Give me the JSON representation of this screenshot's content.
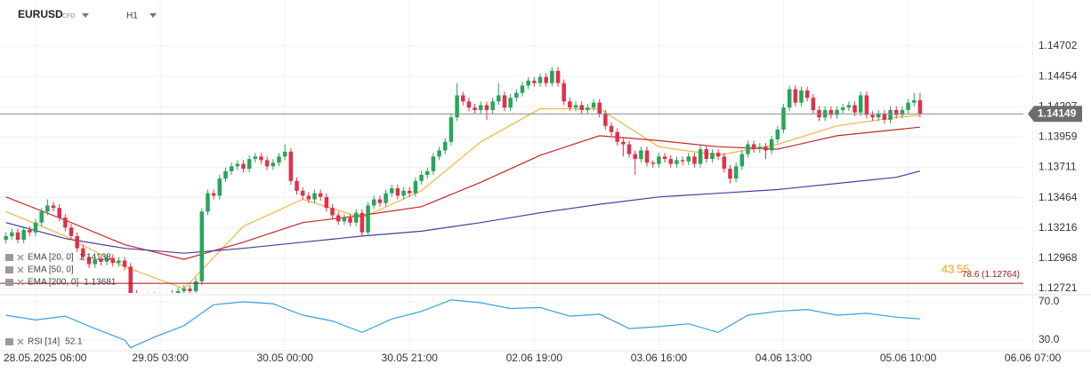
{
  "chart_data": {
    "type": "candlestick",
    "symbol": "EURUSD",
    "instrument_type": "CFD",
    "timeframe": "H1",
    "up_color": "#26a65b",
    "down_color": "#e0314b",
    "xlim": [
      -1,
      182.8
    ],
    "xticks": [
      {
        "value": 5,
        "label": "28.05.2025 06:00"
      },
      {
        "value": 26,
        "label": "29.05 03:00"
      },
      {
        "value": 47,
        "label": "30.05 00:00"
      },
      {
        "value": 68,
        "label": "30.05 21:00"
      },
      {
        "value": 89,
        "label": "02.06 19:00"
      },
      {
        "value": 110,
        "label": "03.06 16:00"
      },
      {
        "value": 131,
        "label": "04.06 13:00"
      },
      {
        "value": 152,
        "label": "05.06 10:00"
      },
      {
        "value": 173,
        "label": "06.06 07:00"
      }
    ],
    "ylim": [
      1.12685,
      1.15079
    ],
    "yticks": [
      1.14702,
      1.14454,
      1.14207,
      1.13959,
      1.13711,
      1.13464,
      1.13216,
      1.12968,
      1.12721
    ],
    "grid": true,
    "open": [
      1.1312,
      1.1315,
      1.1318,
      1.1312,
      1.132,
      1.1318,
      1.1326,
      1.1335,
      1.134,
      1.1338,
      1.133,
      1.1322,
      1.1315,
      1.1305,
      1.1298,
      1.1292,
      1.1296,
      1.1294,
      1.1297,
      1.1293,
      1.1295,
      1.129,
      1.1268,
      1.1264,
      1.1262,
      1.1266,
      1.126,
      1.1263,
      1.1265,
      1.1268,
      1.127,
      1.1272,
      1.127,
      1.1278,
      1.1335,
      1.135,
      1.1348,
      1.1362,
      1.1368,
      1.1372,
      1.1374,
      1.137,
      1.1378,
      1.138,
      1.1377,
      1.1372,
      1.1375,
      1.138,
      1.1384,
      1.136,
      1.1352,
      1.1348,
      1.1345,
      1.135,
      1.1347,
      1.1338,
      1.1332,
      1.1327,
      1.133,
      1.1326,
      1.1334,
      1.1318,
      1.134,
      1.1345,
      1.1342,
      1.135,
      1.1354,
      1.1348,
      1.1352,
      1.135,
      1.136,
      1.1365,
      1.1368,
      1.138,
      1.1385,
      1.1392,
      1.1412,
      1.143,
      1.1425,
      1.142,
      1.1418,
      1.1422,
      1.1418,
      1.1425,
      1.143,
      1.142,
      1.1428,
      1.1432,
      1.1438,
      1.1442,
      1.144,
      1.1445,
      1.144,
      1.145,
      1.144,
      1.1425,
      1.142,
      1.1422,
      1.1418,
      1.142,
      1.1424,
      1.1415,
      1.1405,
      1.14,
      1.1392,
      1.139,
      1.1382,
      1.1378,
      1.1385,
      1.1375,
      1.1374,
      1.138,
      1.1378,
      1.1374,
      1.1377,
      1.1376,
      1.138,
      1.1374,
      1.1386,
      1.1378,
      1.1383,
      1.138,
      1.137,
      1.1362,
      1.1372,
      1.1382,
      1.139,
      1.1386,
      1.1388,
      1.1385,
      1.1394,
      1.1402,
      1.142,
      1.1435,
      1.1424,
      1.1434,
      1.1428,
      1.1418,
      1.1412,
      1.1418,
      1.1414,
      1.1418,
      1.142,
      1.1422,
      1.1416,
      1.143,
      1.1414,
      1.1412,
      1.1415,
      1.141,
      1.1418,
      1.1414,
      1.1418,
      1.1424,
      1.1426
    ],
    "high": [
      1.1318,
      1.1321,
      1.1321,
      1.1323,
      1.1323,
      1.1329,
      1.1338,
      1.1345,
      1.1343,
      1.1341,
      1.1333,
      1.1325,
      1.1318,
      1.1308,
      1.1301,
      1.1299,
      1.1299,
      1.13,
      1.13,
      1.1298,
      1.1298,
      1.1293,
      1.1271,
      1.1267,
      1.1269,
      1.1269,
      1.1266,
      1.1268,
      1.1271,
      1.1273,
      1.1275,
      1.1275,
      1.1281,
      1.1338,
      1.1353,
      1.1353,
      1.1365,
      1.1371,
      1.1375,
      1.1377,
      1.1377,
      1.1381,
      1.1383,
      1.1383,
      1.138,
      1.1378,
      1.1383,
      1.139,
      1.1387,
      1.1363,
      1.1355,
      1.1351,
      1.1353,
      1.1353,
      1.135,
      1.1341,
      1.1335,
      1.1333,
      1.1333,
      1.1337,
      1.1337,
      1.1343,
      1.1348,
      1.1348,
      1.1353,
      1.1357,
      1.1357,
      1.1355,
      1.1355,
      1.1363,
      1.1368,
      1.1371,
      1.1383,
      1.1388,
      1.1395,
      1.1415,
      1.144,
      1.1433,
      1.1428,
      1.1423,
      1.1425,
      1.1425,
      1.1428,
      1.144,
      1.1433,
      1.1431,
      1.1435,
      1.1441,
      1.1445,
      1.1445,
      1.1448,
      1.1448,
      1.1453,
      1.1453,
      1.1443,
      1.1428,
      1.1425,
      1.1425,
      1.1423,
      1.1427,
      1.1427,
      1.1418,
      1.1408,
      1.1403,
      1.1395,
      1.1393,
      1.1385,
      1.1388,
      1.1388,
      1.1377,
      1.1383,
      1.1383,
      1.1381,
      1.138,
      1.138,
      1.1383,
      1.1383,
      1.1389,
      1.1389,
      1.1386,
      1.1386,
      1.1383,
      1.1373,
      1.1375,
      1.1385,
      1.1393,
      1.1393,
      1.1391,
      1.1391,
      1.1397,
      1.1405,
      1.1423,
      1.1438,
      1.1438,
      1.1437,
      1.1437,
      1.1431,
      1.1421,
      1.1421,
      1.1421,
      1.1421,
      1.1423,
      1.1425,
      1.1425,
      1.1433,
      1.1433,
      1.1417,
      1.1418,
      1.1418,
      1.1421,
      1.1421,
      1.1421,
      1.1427,
      1.1432,
      1.1432
    ],
    "low": [
      1.1309,
      1.1312,
      1.1309,
      1.1309,
      1.1315,
      1.1315,
      1.1323,
      1.1332,
      1.1335,
      1.1327,
      1.1319,
      1.1312,
      1.1302,
      1.1295,
      1.1289,
      1.1289,
      1.1291,
      1.1291,
      1.129,
      1.129,
      1.1287,
      1.1265,
      1.1261,
      1.1259,
      1.1259,
      1.1257,
      1.1257,
      1.126,
      1.1262,
      1.1265,
      1.1267,
      1.1267,
      1.1267,
      1.1275,
      1.1332,
      1.1345,
      1.1345,
      1.1359,
      1.1365,
      1.1369,
      1.1367,
      1.1367,
      1.1375,
      1.1374,
      1.1369,
      1.1369,
      1.1372,
      1.1377,
      1.1357,
      1.1349,
      1.1345,
      1.1342,
      1.1342,
      1.1344,
      1.1335,
      1.1329,
      1.1324,
      1.1324,
      1.1323,
      1.1323,
      1.1315,
      1.1315,
      1.1337,
      1.1339,
      1.1339,
      1.1347,
      1.1345,
      1.1345,
      1.1347,
      1.1347,
      1.1357,
      1.1362,
      1.1365,
      1.1377,
      1.1382,
      1.1389,
      1.1409,
      1.1422,
      1.1417,
      1.1415,
      1.1415,
      1.141,
      1.1415,
      1.1422,
      1.1417,
      1.1417,
      1.1425,
      1.1429,
      1.1435,
      1.1437,
      1.1437,
      1.1437,
      1.1437,
      1.1437,
      1.1422,
      1.1417,
      1.1417,
      1.1415,
      1.1415,
      1.1417,
      1.1412,
      1.1402,
      1.1397,
      1.1389,
      1.138,
      1.1379,
      1.1365,
      1.1375,
      1.1372,
      1.1371,
      1.1371,
      1.1375,
      1.1371,
      1.1371,
      1.1373,
      1.1373,
      1.1371,
      1.1371,
      1.1375,
      1.1375,
      1.1377,
      1.1367,
      1.1358,
      1.1359,
      1.1369,
      1.1379,
      1.1383,
      1.1383,
      1.1378,
      1.1382,
      1.1391,
      1.1399,
      1.1417,
      1.1421,
      1.1421,
      1.1425,
      1.1415,
      1.1409,
      1.1409,
      1.1411,
      1.1411,
      1.1415,
      1.1417,
      1.1413,
      1.1413,
      1.1411,
      1.1409,
      1.1409,
      1.1407,
      1.1407,
      1.1411,
      1.1411,
      1.1415,
      1.1421,
      1.1412
    ],
    "close": [
      1.1315,
      1.1318,
      1.1312,
      1.132,
      1.1318,
      1.1326,
      1.1335,
      1.134,
      1.1338,
      1.133,
      1.1322,
      1.1315,
      1.1305,
      1.1298,
      1.1292,
      1.1296,
      1.1294,
      1.1297,
      1.1293,
      1.1295,
      1.129,
      1.1268,
      1.1264,
      1.1262,
      1.1266,
      1.126,
      1.1263,
      1.1265,
      1.1268,
      1.127,
      1.1272,
      1.127,
      1.1278,
      1.1335,
      1.135,
      1.1348,
      1.1362,
      1.1368,
      1.1372,
      1.1374,
      1.137,
      1.1378,
      1.138,
      1.1377,
      1.1372,
      1.1375,
      1.138,
      1.1384,
      1.136,
      1.1352,
      1.1348,
      1.1345,
      1.135,
      1.1347,
      1.1338,
      1.1332,
      1.1327,
      1.133,
      1.1326,
      1.1334,
      1.1318,
      1.134,
      1.1345,
      1.1342,
      1.135,
      1.1354,
      1.1348,
      1.1352,
      1.135,
      1.136,
      1.1365,
      1.1368,
      1.138,
      1.1385,
      1.1392,
      1.1412,
      1.143,
      1.1425,
      1.142,
      1.1418,
      1.1422,
      1.1418,
      1.1425,
      1.143,
      1.142,
      1.1428,
      1.1432,
      1.1438,
      1.1442,
      1.144,
      1.1445,
      1.144,
      1.145,
      1.144,
      1.1425,
      1.142,
      1.1422,
      1.1418,
      1.142,
      1.1424,
      1.1415,
      1.1405,
      1.14,
      1.1392,
      1.139,
      1.1382,
      1.1378,
      1.1385,
      1.1375,
      1.1374,
      1.138,
      1.1378,
      1.1374,
      1.1377,
      1.1376,
      1.138,
      1.1374,
      1.1386,
      1.1378,
      1.1383,
      1.138,
      1.137,
      1.1362,
      1.1372,
      1.1382,
      1.139,
      1.1386,
      1.1388,
      1.1385,
      1.1394,
      1.1402,
      1.142,
      1.1435,
      1.1424,
      1.1434,
      1.1428,
      1.1418,
      1.1412,
      1.1418,
      1.1414,
      1.1418,
      1.142,
      1.1422,
      1.1416,
      1.143,
      1.1414,
      1.1412,
      1.1415,
      1.141,
      1.1418,
      1.1414,
      1.1418,
      1.1424,
      1.1426,
      1.14149
    ],
    "indicators": [
      {
        "name": "EMA [20, 0]",
        "last_value": 1.14138,
        "color": "#f2b443",
        "x": [
          0,
          10,
          20,
          30,
          40,
          50,
          60,
          70,
          80,
          90,
          100,
          110,
          120,
          130,
          140,
          150,
          154
        ],
        "values": [
          1.1335,
          1.1315,
          1.129,
          1.1272,
          1.1323,
          1.1345,
          1.133,
          1.1352,
          1.1392,
          1.1419,
          1.1419,
          1.1388,
          1.1381,
          1.139,
          1.1405,
          1.1412,
          1.14138
        ]
      },
      {
        "name": "EMA [50, 0]",
        "color": "#c0282a",
        "x": [
          0,
          10,
          20,
          30,
          40,
          50,
          60,
          70,
          80,
          90,
          100,
          110,
          120,
          130,
          140,
          150,
          154
        ],
        "values": [
          1.1347,
          1.1328,
          1.1308,
          1.1296,
          1.131,
          1.1326,
          1.1332,
          1.1339,
          1.1359,
          1.1381,
          1.1397,
          1.1393,
          1.1388,
          1.1386,
          1.1397,
          1.1402,
          1.1404
        ]
      },
      {
        "name": "EMA [200, 0]",
        "last_value": 1.13681,
        "color": "#4b3a9e",
        "x": [
          0,
          10,
          20,
          30,
          40,
          50,
          60,
          70,
          80,
          90,
          100,
          110,
          120,
          130,
          140,
          150,
          154
        ],
        "values": [
          1.1326,
          1.1313,
          1.1305,
          1.1301,
          1.1305,
          1.131,
          1.1315,
          1.1319,
          1.1326,
          1.1334,
          1.1341,
          1.1347,
          1.135,
          1.1353,
          1.1358,
          1.1363,
          1.13681
        ]
      }
    ],
    "current_price": 1.14149,
    "fib_level": {
      "label": "78.6 (1.12764)",
      "value": 1.12764,
      "color": "#a31515"
    },
    "countdown": [
      "43",
      "55"
    ],
    "rsi": {
      "name": "RSI [14]",
      "last_value": 52.1,
      "color": "#3b9fe0",
      "ylim": [
        18.8,
        77.4
      ],
      "yticks": [
        {
          "value": 70,
          "label": "70.0"
        },
        {
          "value": 30,
          "label": "30.0"
        }
      ],
      "x": [
        0,
        5,
        10,
        15,
        20,
        21,
        25,
        30,
        35,
        40,
        45,
        50,
        55,
        60,
        65,
        70,
        75,
        80,
        85,
        90,
        95,
        100,
        105,
        110,
        115,
        120,
        125,
        130,
        135,
        140,
        145,
        150,
        154
      ],
      "values": [
        56,
        51,
        55,
        42,
        30,
        22,
        33,
        45,
        67,
        70,
        68,
        56,
        50,
        38,
        52,
        60,
        72,
        69,
        63,
        64,
        55,
        57,
        42,
        44,
        47,
        38,
        56,
        60,
        62,
        56,
        58,
        54,
        52.1
      ]
    }
  }
}
